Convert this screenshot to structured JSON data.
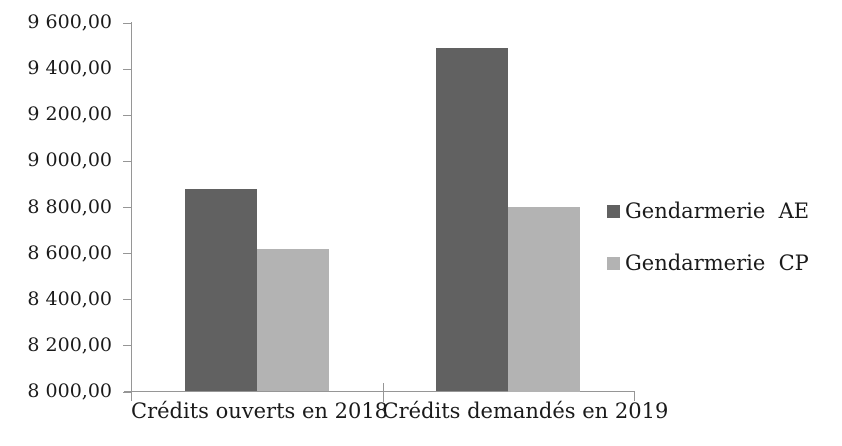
{
  "chart_data": {
    "type": "bar",
    "categories": [
      "Crédits ouverts en 2018",
      "Crédits demandés en 2019"
    ],
    "series": [
      {
        "name": "Gendarmerie  AE",
        "color": "#616161",
        "values": [
          8880,
          9490
        ]
      },
      {
        "name": "Gendarmerie  CP",
        "color": "#b3b3b3",
        "values": [
          8620,
          8800
        ]
      }
    ],
    "ylim": [
      8000,
      9600
    ],
    "ytick_step": 200,
    "ytick_labels": [
      "9 600,00",
      "9 400,00",
      "9 200,00",
      "9 000,00",
      "8 800,00",
      "8 600,00",
      "8 400,00",
      "8 200,00",
      "8 000,00"
    ],
    "legend_position": "right",
    "grid": false,
    "axis_color": "#969696"
  }
}
